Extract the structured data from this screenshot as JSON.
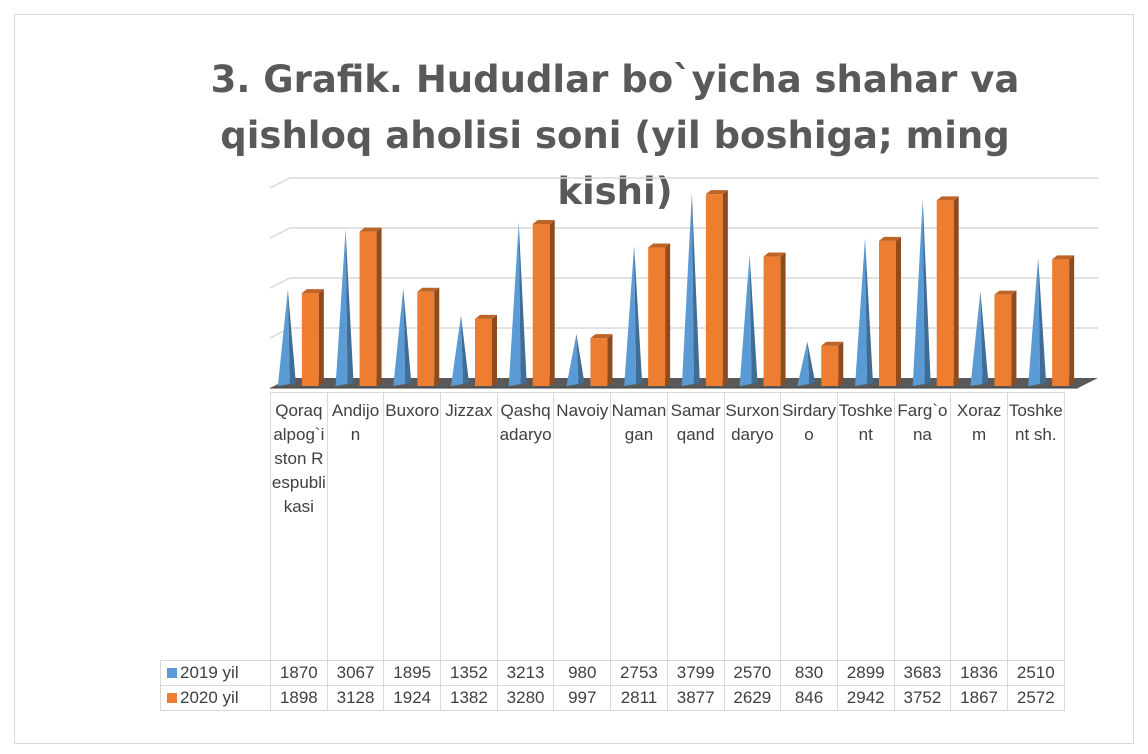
{
  "chart_data": {
    "type": "bar3d",
    "title": "3. Grafik. Hududlar bo`yicha shahar va qishloq aholisi soni (yil boshiga; ming kishi)",
    "categories": [
      "Qoraqalpog`iston Respublikasi",
      "Andijon",
      "Buxoro",
      "Jizzax",
      "Qashqadaryo",
      "Navoiy",
      "Namangan",
      "Samarqand",
      "Surxondaryo",
      "Sirdaryo",
      "Toshkent",
      "Farg`ona",
      "Xorazm",
      "Toshkent sh."
    ],
    "series": [
      {
        "name": "2019 yil",
        "color": "#5b9bd5",
        "values": [
          1870,
          3067,
          1895,
          1352,
          3213,
          980,
          2753,
          3799,
          2570,
          830,
          2899,
          3683,
          1836,
          2510
        ]
      },
      {
        "name": "2020 yil",
        "color": "#ed7d31",
        "values": [
          1898,
          3128,
          1924,
          1382,
          3280,
          997,
          2811,
          3877,
          2629,
          846,
          2942,
          3752,
          1867,
          2572
        ]
      }
    ],
    "ylim": [
      0,
      4000
    ],
    "yticks": [
      0,
      1000,
      2000,
      3000,
      4000
    ],
    "grid": true
  }
}
